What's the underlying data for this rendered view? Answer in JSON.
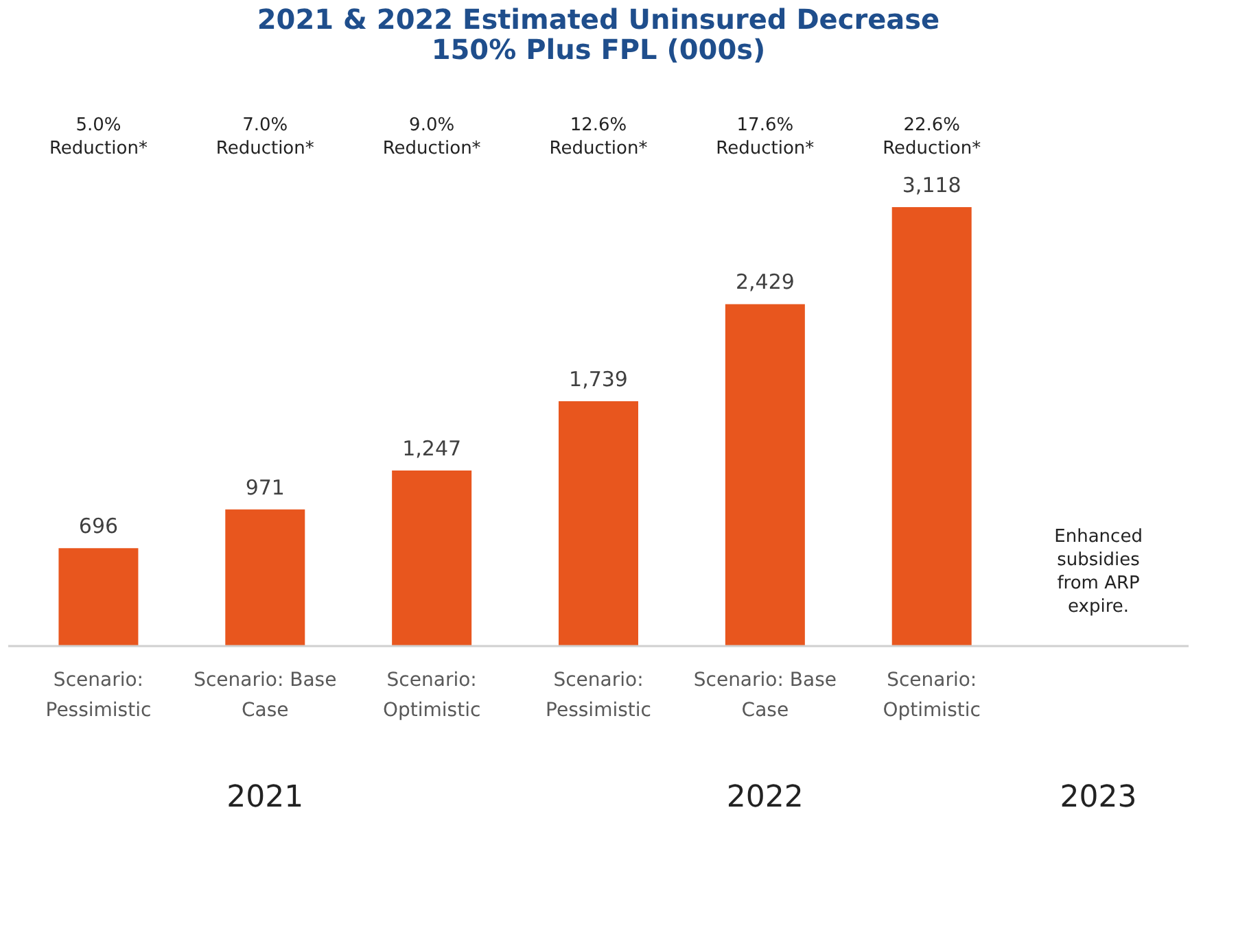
{
  "chart_data": {
    "type": "bar",
    "title": "2021 & 2022 Estimated Uninsured Decrease 150% Plus FPL (000s)",
    "categories": [
      "Scenario: Pessimistic",
      "Scenario: Base Case",
      "Scenario: Optimistic",
      "Scenario: Pessimistic",
      "Scenario: Base Case",
      "Scenario: Optimistic",
      null
    ],
    "values": [
      696,
      971,
      1247,
      1739,
      2429,
      3118,
      null
    ],
    "color": "#e8561e",
    "value_labels": [
      "696",
      "971",
      "1,247",
      "1,739",
      "2,429",
      "3,118",
      null
    ],
    "annotations": [
      "5.0% Reduction*",
      "7.0% Reduction*",
      "9.0% Reduction*",
      "12.6% Reduction*",
      "17.6% Reduction*",
      "22.6% Reduction*",
      "Enhanced subsidies from ARP expire.",
      "2021",
      "2022",
      "2023"
    ]
  }
}
